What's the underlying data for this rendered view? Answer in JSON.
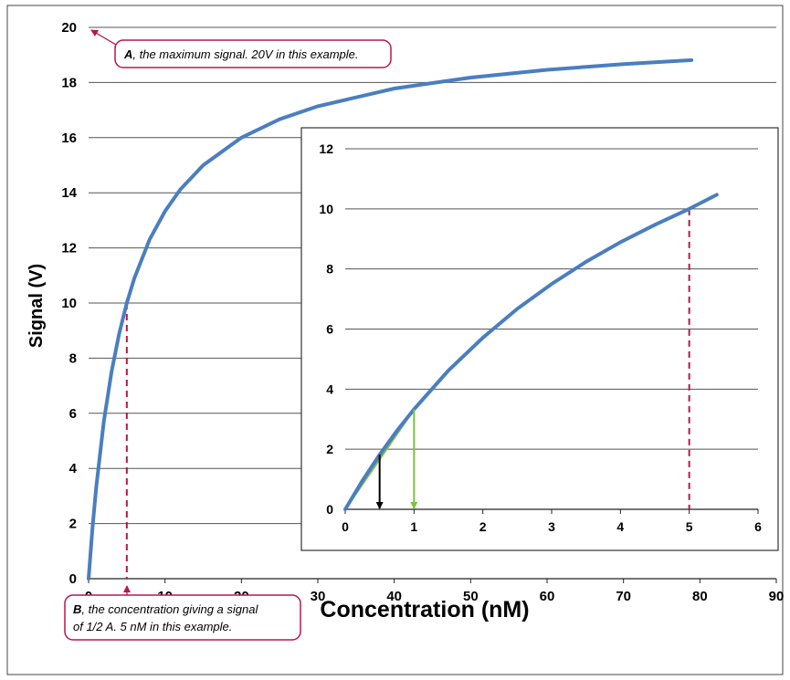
{
  "chart_data": [
    {
      "type": "line",
      "title": "",
      "xlabel": "Concentration (nM)",
      "ylabel": "Signal (V)",
      "xlim": [
        0,
        90
      ],
      "ylim": [
        0,
        20
      ],
      "xticks": [
        0,
        10,
        20,
        30,
        40,
        50,
        60,
        70,
        80,
        90
      ],
      "yticks": [
        0,
        2,
        4,
        6,
        8,
        10,
        12,
        14,
        16,
        18,
        20
      ],
      "grid": "horizontal",
      "series": [
        {
          "color": "#4a7ebf",
          "x": [
            0,
            0.5,
            1,
            2,
            3,
            4,
            5,
            6,
            8,
            10,
            12,
            15,
            20,
            25,
            30,
            40,
            50,
            60,
            70,
            78.9
          ],
          "y": [
            0,
            1.82,
            3.33,
            5.71,
            7.5,
            8.89,
            10.0,
            10.91,
            12.31,
            13.33,
            14.12,
            15.0,
            16.0,
            16.67,
            17.14,
            17.78,
            18.18,
            18.46,
            18.67,
            18.81
          ]
        }
      ],
      "guides": [
        {
          "x": 5,
          "y": 10,
          "color": "#b5184a",
          "style": "dashed"
        }
      ]
    },
    {
      "type": "line",
      "title": "",
      "xlabel": "",
      "ylabel": "",
      "xlim": [
        0,
        6
      ],
      "ylim": [
        0,
        12
      ],
      "xticks": [
        0,
        1,
        2,
        3,
        4,
        5,
        6
      ],
      "yticks": [
        0,
        2,
        4,
        6,
        8,
        10,
        12
      ],
      "grid": "horizontal",
      "series": [
        {
          "color": "#4a7ebf",
          "x": [
            0,
            0.25,
            0.5,
            0.75,
            1,
            1.5,
            2,
            2.5,
            3,
            3.5,
            4,
            4.5,
            5,
            5.4
          ],
          "y": [
            0,
            0.95,
            1.82,
            2.61,
            3.33,
            4.62,
            5.71,
            6.67,
            7.5,
            8.24,
            8.89,
            9.47,
            10.0,
            10.47
          ]
        }
      ],
      "tangents": [
        {
          "x": [
            0,
            0.5
          ],
          "y": [
            0,
            1.82
          ],
          "color": "#000000"
        },
        {
          "x": [
            0,
            1
          ],
          "y": [
            0,
            3.33
          ],
          "color": "#7dc242"
        }
      ],
      "arrows": [
        {
          "x": 0.5,
          "from_y": 1.82,
          "to_y": 0,
          "color": "#000000"
        },
        {
          "x": 1,
          "from_y": 3.33,
          "to_y": 0,
          "color": "#7dc242"
        }
      ],
      "guides": [
        {
          "x": 5,
          "y": 10,
          "color": "#b5184a",
          "style": "dashed"
        }
      ]
    }
  ],
  "annotations": {
    "a": {
      "bold": "A",
      "rest": ", the maximum signal. 20V in this example."
    },
    "b": {
      "bold": "B",
      "rest": ", the concentration giving a signal",
      "line2": "of 1/2 A. 5 nM in this example."
    }
  },
  "colors": {
    "curve": "#4a7ebf",
    "accent": "#b5184a",
    "grid": "#555555"
  }
}
